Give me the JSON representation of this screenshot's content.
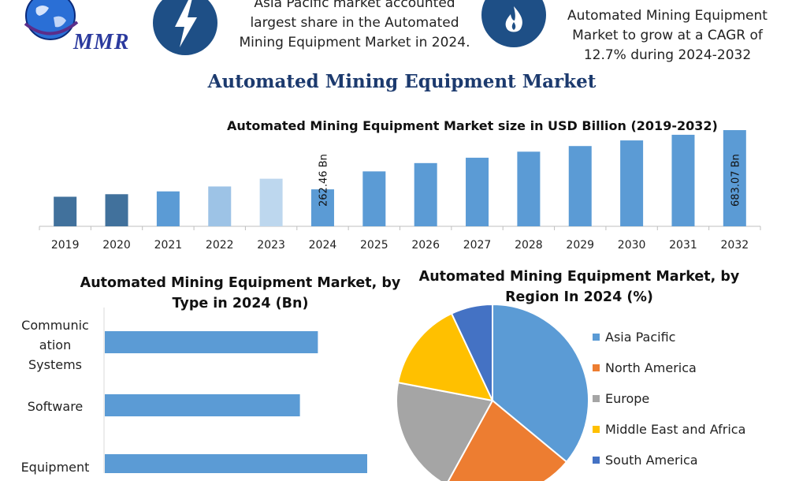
{
  "header": {
    "logo_text": "MMR",
    "highlight_left": "Asia Pacific market accounted largest share in the Automated Mining Equipment Market in 2024.",
    "highlight_right": "Automated Mining Equipment Market to grow at a CAGR of 12.7% during 2024-2032",
    "icon_left": "lightning-icon",
    "icon_right": "flame-icon"
  },
  "main_title": "Automated Mining Equipment Market",
  "colors": {
    "bar_main": "#5b9bd5",
    "bar_dark": "#41719c",
    "bar_light1": "#9dc3e6",
    "bar_light2": "#bdd7ee",
    "pie_asia": "#5b9bd5",
    "pie_na": "#ed7d31",
    "pie_eu": "#a5a5a5",
    "pie_mea": "#ffc000",
    "pie_sa": "#4472c4"
  },
  "chart_data": [
    {
      "type": "bar",
      "title": "Automated Mining Equipment Market size in USD Billion (2019-2032)",
      "categories": [
        "2019",
        "2020",
        "2021",
        "2022",
        "2023",
        "2024",
        "2025",
        "2026",
        "2027",
        "2028",
        "2029",
        "2030",
        "2031",
        "2032"
      ],
      "values": [
        210,
        228,
        248,
        283,
        338,
        262.46,
        390,
        449,
        487,
        530,
        570,
        610,
        650,
        683.07
      ],
      "data_labels": {
        "2024": "262.46 Bn",
        "2032": "683.07 Bn"
      },
      "ylim": [
        0,
        700
      ],
      "grid": false
    },
    {
      "type": "bar",
      "orientation": "horizontal",
      "title": "Automated Mining Equipment Market, by Type in 2024 (Bn)",
      "categories": [
        "Communication Systems",
        "Software",
        "Equipment"
      ],
      "category_label_lines": [
        [
          "Communic",
          "ation",
          "Systems"
        ],
        [
          "Software"
        ],
        [
          "Equipment"
        ]
      ],
      "values": [
        95,
        87,
        117
      ],
      "xlim": [
        0,
        130
      ]
    },
    {
      "type": "pie",
      "title": "Automated Mining Equipment Market, by Region In 2024 (%)",
      "labels": [
        "Asia Pacific",
        "North America",
        "Europe",
        "Middle East and Africa",
        "South America"
      ],
      "values": [
        36,
        22,
        20,
        15,
        7
      ],
      "legend_position": "right"
    }
  ]
}
